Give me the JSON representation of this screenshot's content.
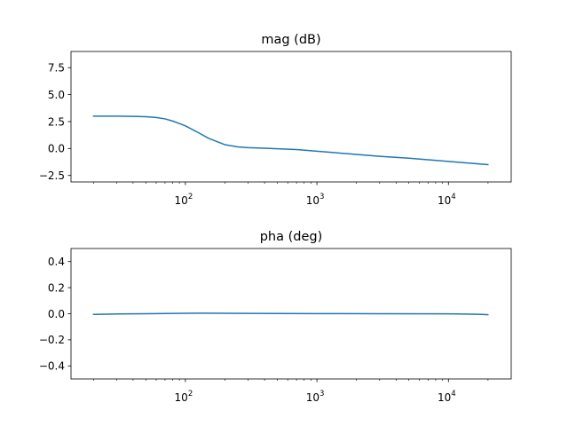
{
  "colors": {
    "series": "#1f77b4"
  },
  "chart_data": [
    {
      "type": "line",
      "title": "mag (dB)",
      "xlabel": "",
      "ylabel": "",
      "xscale": "log",
      "xlim": [
        13.5,
        30000
      ],
      "ylim": [
        -3.1,
        9.0
      ],
      "yticks": [
        -2.5,
        0.0,
        2.5,
        5.0,
        7.5
      ],
      "ytick_labels": [
        "−2.5",
        "0.0",
        "2.5",
        "5.0",
        "7.5"
      ],
      "xticks": [
        {
          "value": 100,
          "base": "10",
          "exp": "2"
        },
        {
          "value": 1000,
          "base": "10",
          "exp": "3"
        },
        {
          "value": 10000,
          "base": "10",
          "exp": "4"
        }
      ],
      "grid": false,
      "series": [
        {
          "x": [
            20,
            30,
            40,
            50,
            60,
            70,
            80,
            90,
            100,
            120,
            150,
            200,
            250,
            300,
            400,
            500,
            700,
            1000,
            2000,
            3000,
            5000,
            10000,
            20000
          ],
          "y": [
            3.0,
            3.0,
            2.98,
            2.95,
            2.88,
            2.75,
            2.55,
            2.32,
            2.1,
            1.6,
            0.95,
            0.35,
            0.15,
            0.08,
            0.03,
            -0.02,
            -0.1,
            -0.25,
            -0.55,
            -0.72,
            -0.9,
            -1.2,
            -1.5
          ]
        }
      ]
    },
    {
      "type": "line",
      "title": "pha (deg)",
      "xlabel": "",
      "ylabel": "",
      "xscale": "log",
      "xlim": [
        13.5,
        30000
      ],
      "ylim": [
        -0.5,
        0.5
      ],
      "yticks": [
        -0.4,
        -0.2,
        0.0,
        0.2,
        0.4
      ],
      "ytick_labels": [
        "−0.4",
        "−0.2",
        "0.0",
        "0.2",
        "0.4"
      ],
      "xticks": [
        {
          "value": 100,
          "base": "10",
          "exp": "2"
        },
        {
          "value": 1000,
          "base": "10",
          "exp": "3"
        },
        {
          "value": 10000,
          "base": "10",
          "exp": "4"
        }
      ],
      "grid": false,
      "series": [
        {
          "x": [
            20,
            25,
            30,
            50,
            100,
            130,
            200,
            500,
            1000,
            3000,
            10000,
            15000,
            18000,
            20000
          ],
          "y": [
            -0.005,
            -0.003,
            -0.002,
            0.0,
            0.003,
            0.004,
            0.003,
            0.002,
            0.001,
            0.0,
            -0.001,
            -0.003,
            -0.005,
            -0.008
          ]
        }
      ]
    }
  ]
}
